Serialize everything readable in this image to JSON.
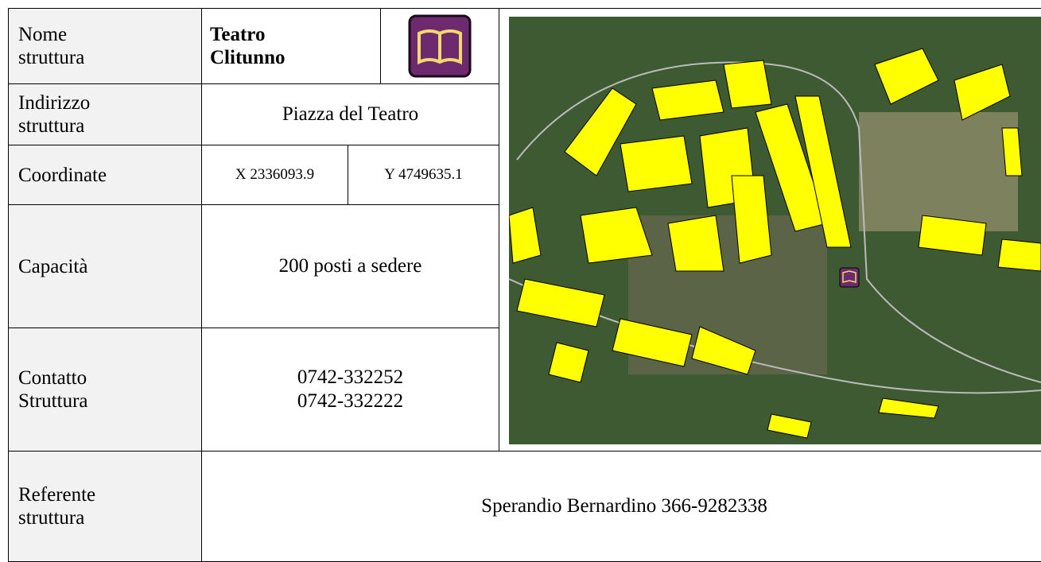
{
  "rows": [
    {
      "label": [
        "Nome",
        "struttura"
      ],
      "name": [
        "Teatro",
        "Clitunno"
      ]
    },
    {
      "label": [
        "Indirizzo",
        "struttura"
      ],
      "value": "Piazza del Teatro"
    },
    {
      "label": [
        "Coordinate"
      ],
      "x": "X 2336093.9",
      "y": "Y 4749635.1"
    },
    {
      "label": [
        "Capacità"
      ],
      "value": "200 posti a sedere"
    },
    {
      "label": [
        "Contatto",
        "Struttura"
      ],
      "value": [
        "0742-332252",
        "0742-332222"
      ]
    },
    {
      "label": [
        "Referente",
        "struttura"
      ],
      "value": "Sperandio Bernardino 366-9282338"
    }
  ]
}
